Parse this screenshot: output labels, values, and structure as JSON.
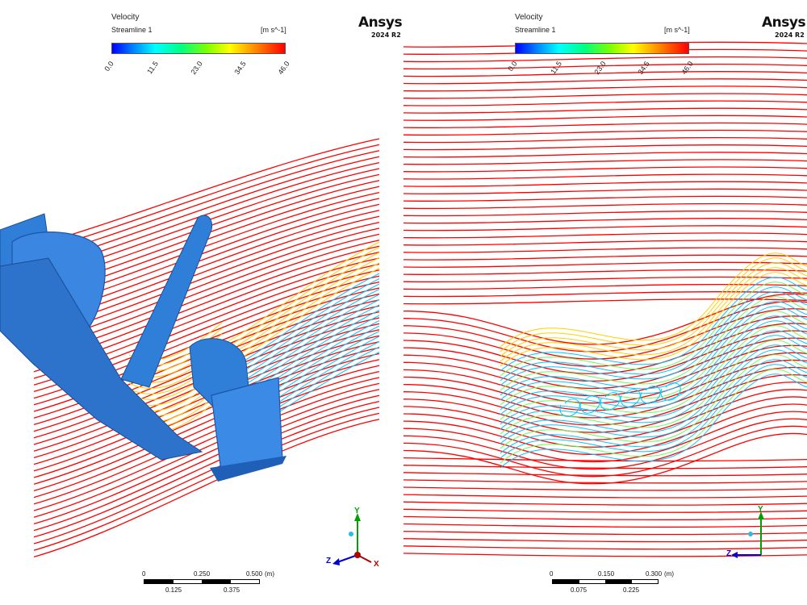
{
  "left": {
    "legend": {
      "title": "Velocity",
      "subtitle": "Streamline 1",
      "unit": "[m s^-1]",
      "ticks": [
        "0.0",
        "11.5",
        "23.0",
        "34.5",
        "46.0"
      ]
    },
    "brand": {
      "name": "Ansys",
      "version": "2024 R2"
    },
    "scale": {
      "top": [
        "0",
        "0.250",
        "0.500"
      ],
      "unit": "(m)",
      "bottom": [
        "0.125",
        "0.375"
      ]
    },
    "axes": {
      "y": "Y",
      "z": "Z",
      "x": "X"
    }
  },
  "right": {
    "legend": {
      "title": "Velocity",
      "subtitle": "Streamline 1",
      "unit": "[m s^-1]",
      "ticks": [
        "0.0",
        "11.5",
        "23.0",
        "34.5",
        "46.0"
      ]
    },
    "brand": {
      "name": "Ansys",
      "version": "2024 R2"
    },
    "scale": {
      "top": [
        "0",
        "0.150",
        "0.300"
      ],
      "unit": "(m)",
      "bottom": [
        "0.075",
        "0.225"
      ]
    },
    "axes": {
      "y": "Y",
      "z": "Z"
    }
  },
  "colors": {
    "fast": "#ff0000",
    "medium": "#ffd000",
    "slow": "#00c8ff",
    "body": "#2f7fd8"
  }
}
